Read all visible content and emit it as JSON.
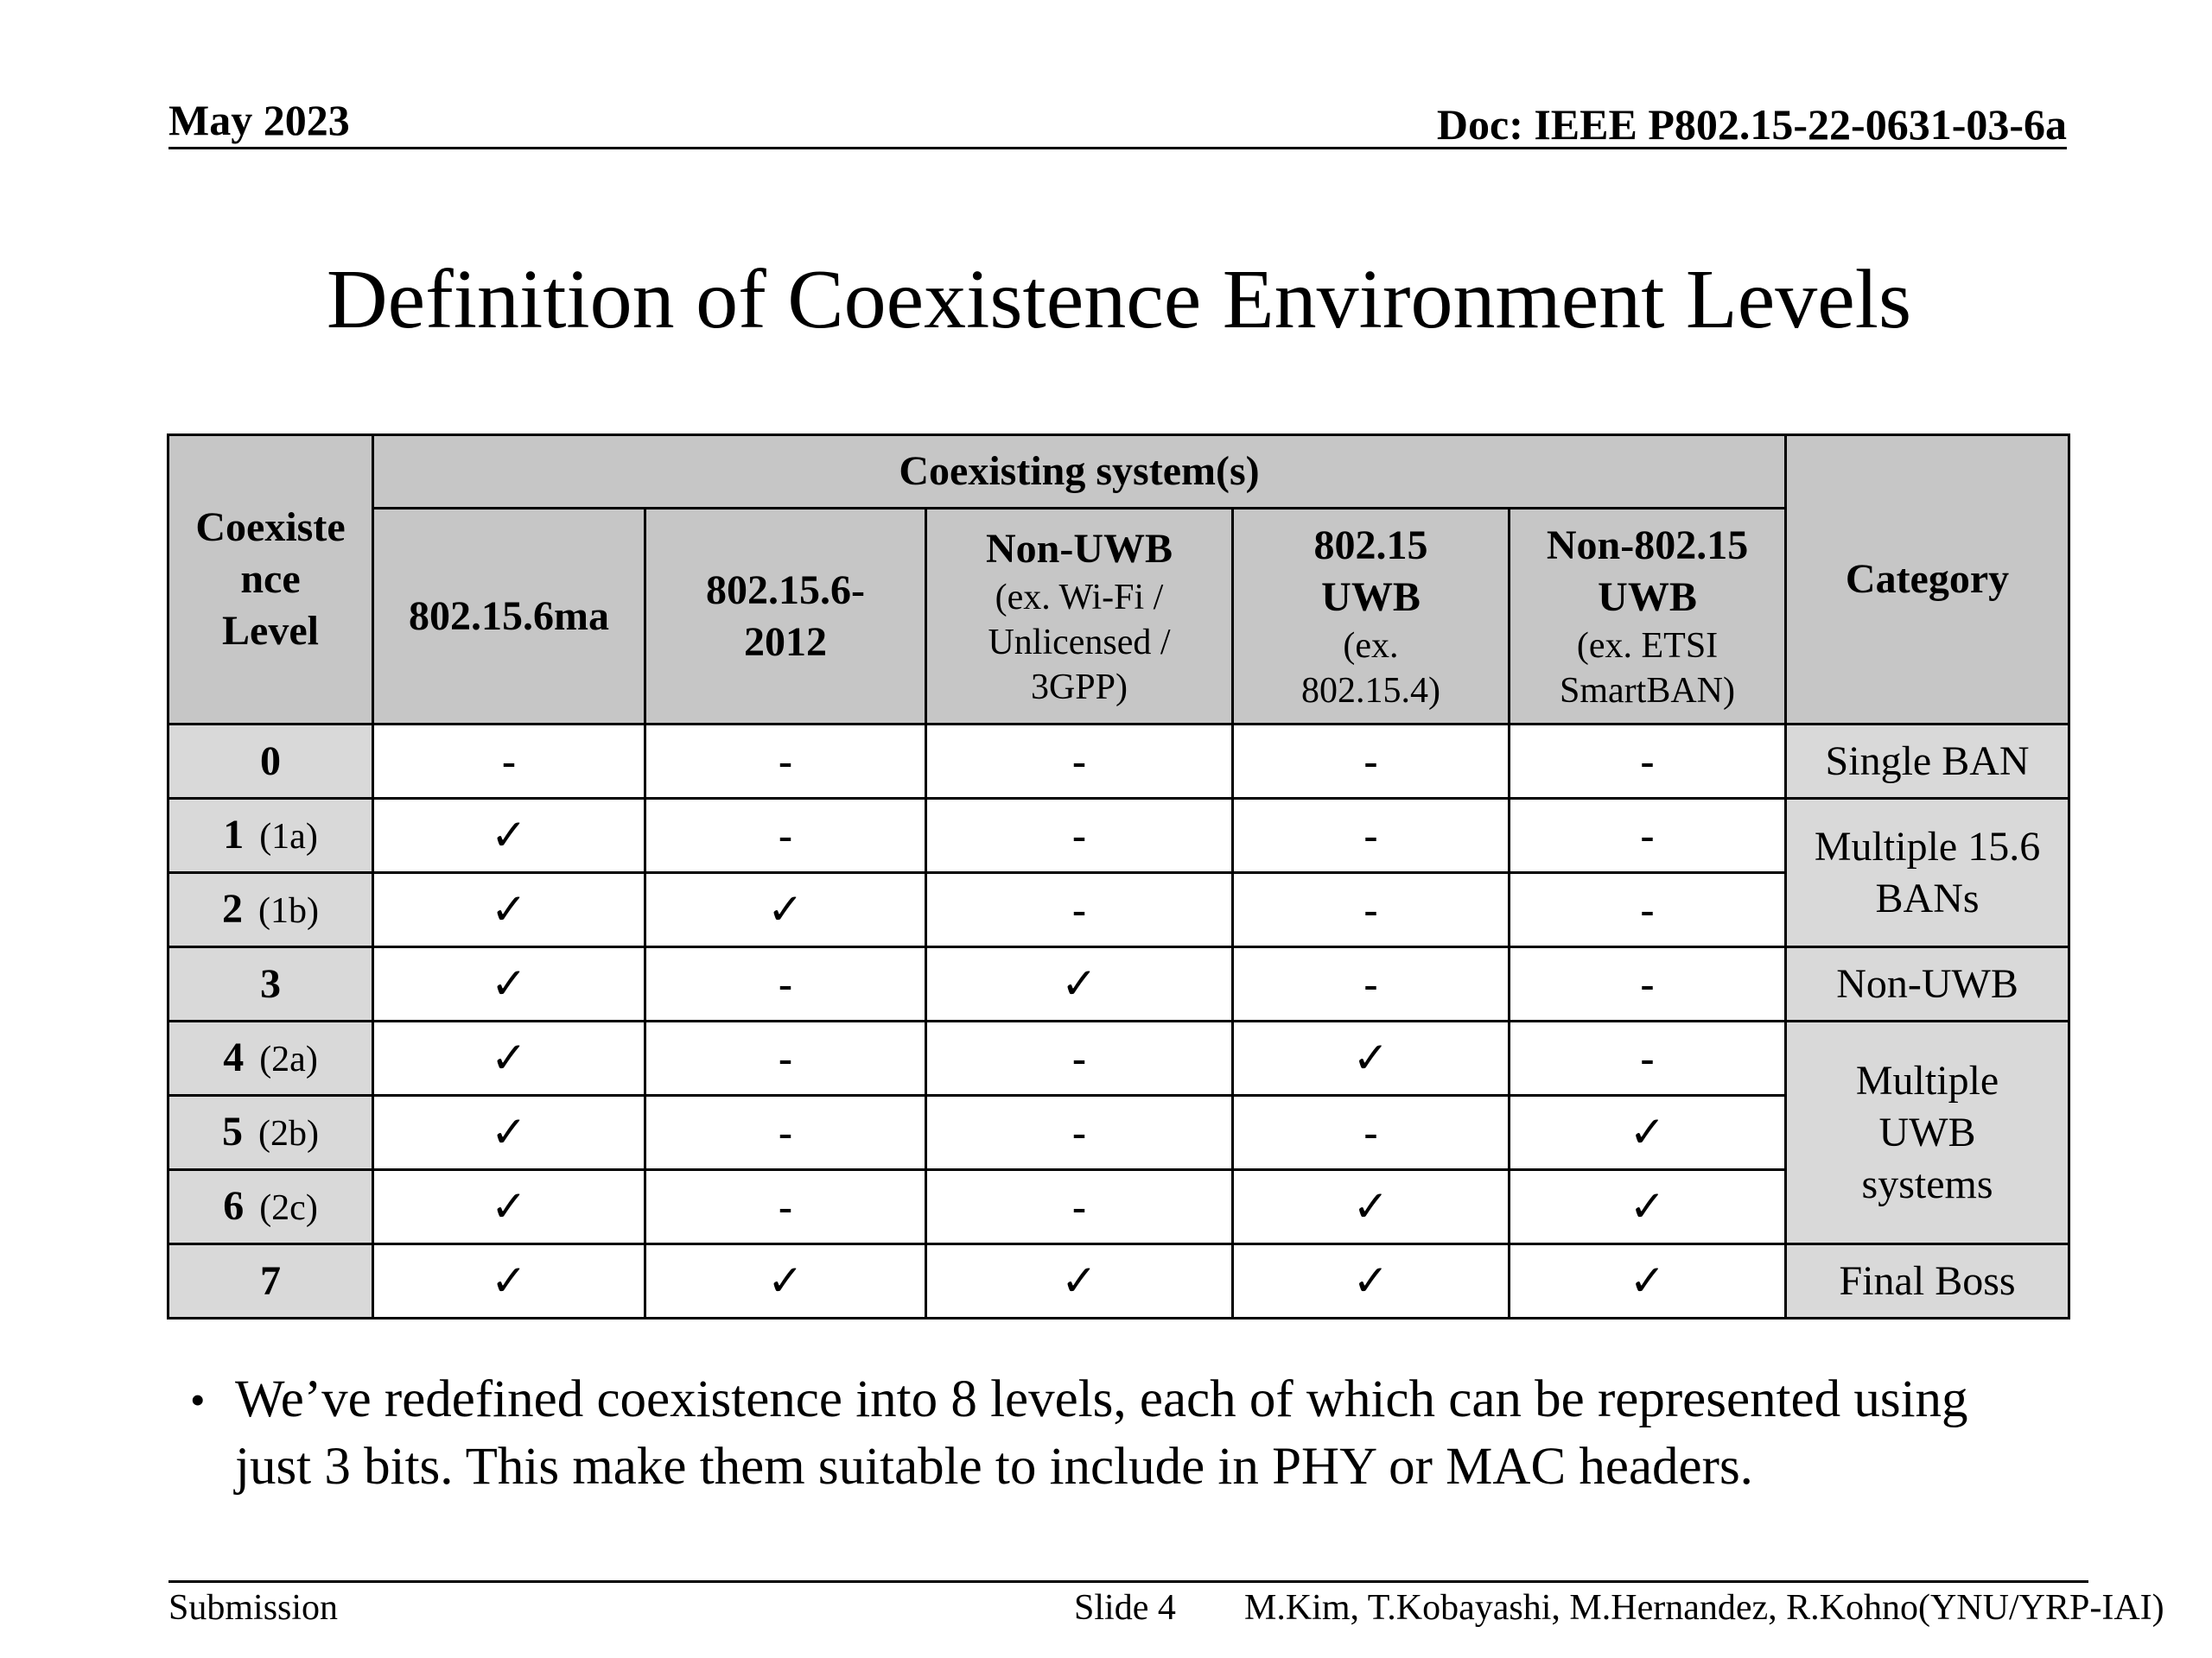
{
  "header": {
    "date": "May 2023",
    "doc": "Doc: IEEE P802.15-22-0631-03-6a"
  },
  "title": "Definition of Coexistence Environment Levels",
  "table": {
    "level_header": "Coexiste nce Level",
    "group_header": "Coexisting system(s)",
    "category_header": "Category",
    "columns": [
      {
        "main": "802.15.6ma",
        "sub": ""
      },
      {
        "main": "802.15.6-2012",
        "sub": ""
      },
      {
        "main": "Non-UWB",
        "sub": "(ex. Wi-Fi / Unlicensed / 3GPP)"
      },
      {
        "main": "802.15 UWB",
        "sub": "(ex. 802.15.4)"
      },
      {
        "main": "Non-802.15 UWB",
        "sub": "(ex. ETSI SmartBAN)"
      }
    ],
    "rows": [
      {
        "level": "0",
        "alt": "",
        "cells": [
          "-",
          "-",
          "-",
          "-",
          "-"
        ]
      },
      {
        "level": "1",
        "alt": "(1a)",
        "cells": [
          "✓",
          "-",
          "-",
          "-",
          "-"
        ]
      },
      {
        "level": "2",
        "alt": "(1b)",
        "cells": [
          "✓",
          "✓",
          "-",
          "-",
          "-"
        ]
      },
      {
        "level": "3",
        "alt": "",
        "cells": [
          "✓",
          "-",
          "✓",
          "-",
          "-"
        ]
      },
      {
        "level": "4",
        "alt": "(2a)",
        "cells": [
          "✓",
          "-",
          "-",
          "✓",
          "-"
        ]
      },
      {
        "level": "5",
        "alt": "(2b)",
        "cells": [
          "✓",
          "-",
          "-",
          "-",
          "✓"
        ]
      },
      {
        "level": "6",
        "alt": "(2c)",
        "cells": [
          "✓",
          "-",
          "-",
          "✓",
          "✓"
        ]
      },
      {
        "level": "7",
        "alt": "",
        "cells": [
          "✓",
          "✓",
          "✓",
          "✓",
          "✓"
        ]
      }
    ],
    "categories": [
      {
        "label": "Single BAN",
        "rows": 1
      },
      {
        "label": "Multiple 15.6 BANs",
        "rows": 2
      },
      {
        "label": "Non-UWB",
        "rows": 1
      },
      {
        "label": "Multiple UWB systems",
        "rows": 3
      },
      {
        "label": "Final Boss",
        "rows": 1
      }
    ]
  },
  "bullet": "We’ve redefined coexistence into 8 levels, each of which can be represented using just 3 bits. This make them suitable to include in PHY or MAC headers.",
  "footer": {
    "left": "Submission",
    "slide": "Slide 4",
    "authors": "M.Kim, T.Kobayashi, M.Hernandez, R.Kohno(YNU/YRP-IAI)"
  }
}
